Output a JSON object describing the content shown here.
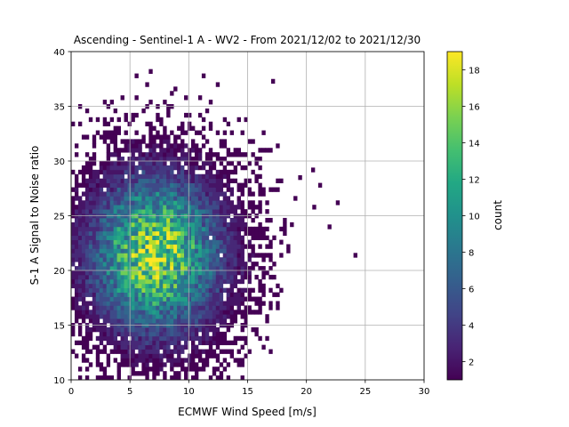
{
  "chart_data": {
    "type": "heatmap",
    "title": "Ascending - Sentinel-1 A - WV2 - From 2021/12/02 to 2021/12/30",
    "xlabel": "ECMWF Wind Speed [m/s]",
    "ylabel": "S-1 A Signal to Noise ratio",
    "xlim": [
      0,
      30
    ],
    "ylim": [
      10,
      40
    ],
    "xticks": [
      "0",
      "5",
      "10",
      "15",
      "20",
      "25",
      "30"
    ],
    "yticks": [
      "10",
      "15",
      "20",
      "25",
      "30",
      "35",
      "40"
    ],
    "grid": true,
    "colormap": "viridis",
    "colorbar": {
      "label": "count",
      "range": [
        1,
        19
      ],
      "ticks": [
        "2",
        "4",
        "6",
        "8",
        "10",
        "12",
        "14",
        "16",
        "18"
      ]
    },
    "bin_width": [
      0.3,
      0.4
    ],
    "density_center": {
      "x": 7.2,
      "y": 21.5
    },
    "peak_count": 19,
    "outliers": [
      {
        "x": 24.0,
        "y": 21.2
      },
      {
        "x": 21.8,
        "y": 23.8
      },
      {
        "x": 20.5,
        "y": 25.6
      },
      {
        "x": 19.3,
        "y": 28.3
      },
      {
        "x": 20.4,
        "y": 29.0
      },
      {
        "x": 17.0,
        "y": 37.1
      },
      {
        "x": 18.6,
        "y": 24.0
      }
    ]
  }
}
